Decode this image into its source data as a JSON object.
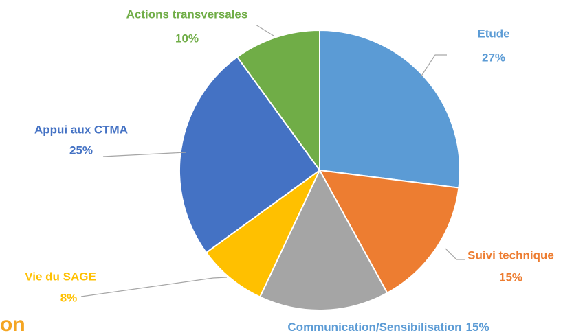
{
  "chart_data": {
    "type": "pie",
    "categories": [
      "Etude",
      "Suivi technique",
      "Communication/Sensibilisation",
      "Vie du SAGE",
      "Appui aux CTMA",
      "Actions transversales"
    ],
    "values": [
      27,
      15,
      15,
      8,
      25,
      10
    ],
    "value_labels": [
      "27%",
      "15%",
      "15%",
      "8%",
      "25%",
      "10%"
    ],
    "colors": [
      "#5b9bd5",
      "#ed7d31",
      "#a5a5a5",
      "#ffc000",
      "#4472c4",
      "#70ad47"
    ]
  },
  "fragment": "on"
}
